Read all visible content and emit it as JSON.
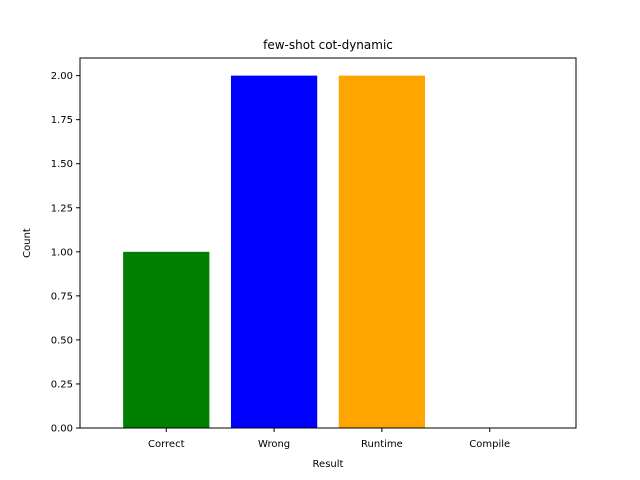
{
  "chart_data": {
    "type": "bar",
    "title": "few-shot cot-dynamic",
    "xlabel": "Result",
    "ylabel": "Count",
    "categories": [
      "Correct",
      "Wrong",
      "Runtime",
      "Compile"
    ],
    "values": [
      1,
      2,
      2,
      0
    ],
    "colors": [
      "#008000",
      "#0000ff",
      "#ffa500",
      "#000000"
    ],
    "ylim": [
      0,
      2.1
    ],
    "yticks": [
      "0.00",
      "0.25",
      "0.50",
      "0.75",
      "1.00",
      "1.25",
      "1.50",
      "1.75",
      "2.00"
    ],
    "grid": false,
    "legend": "none"
  }
}
